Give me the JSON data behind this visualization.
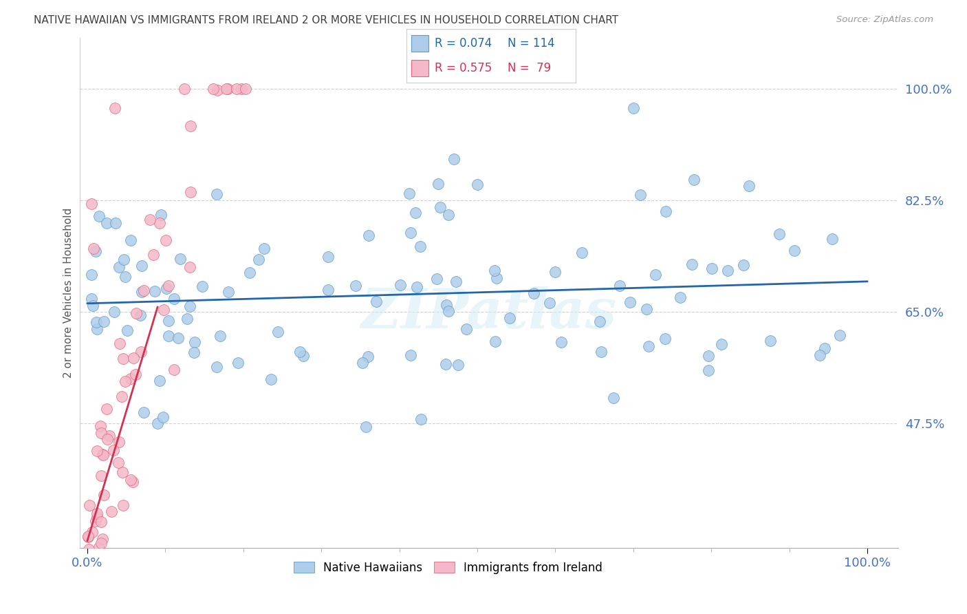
{
  "title": "NATIVE HAWAIIAN VS IMMIGRANTS FROM IRELAND 2 OR MORE VEHICLES IN HOUSEHOLD CORRELATION CHART",
  "source": "Source: ZipAtlas.com",
  "ylabel": "2 or more Vehicles in Household",
  "watermark": "ZIPatlas",
  "legend_blue_r": "R = 0.074",
  "legend_blue_n": "N = 114",
  "legend_pink_r": "R = 0.575",
  "legend_pink_n": "N =  79",
  "blue_fill": "#aecde8",
  "pink_fill": "#f4b8c8",
  "blue_edge": "#5b9bd5",
  "pink_edge": "#e8657a",
  "line_blue": "#2166ac",
  "line_pink": "#d63050",
  "axis_color": "#4472c4",
  "title_color": "#404040",
  "source_color": "#999999",
  "ytick_vals": [
    47.5,
    65.0,
    82.5,
    100.0
  ],
  "ytick_labels": [
    "47.5%",
    "65.0%",
    "82.5%",
    "100.0%"
  ],
  "xtick_vals": [
    0,
    100
  ],
  "xtick_labels": [
    "0.0%",
    "100.0%"
  ],
  "xlim": [
    -1,
    104
  ],
  "ylim": [
    28,
    108
  ]
}
